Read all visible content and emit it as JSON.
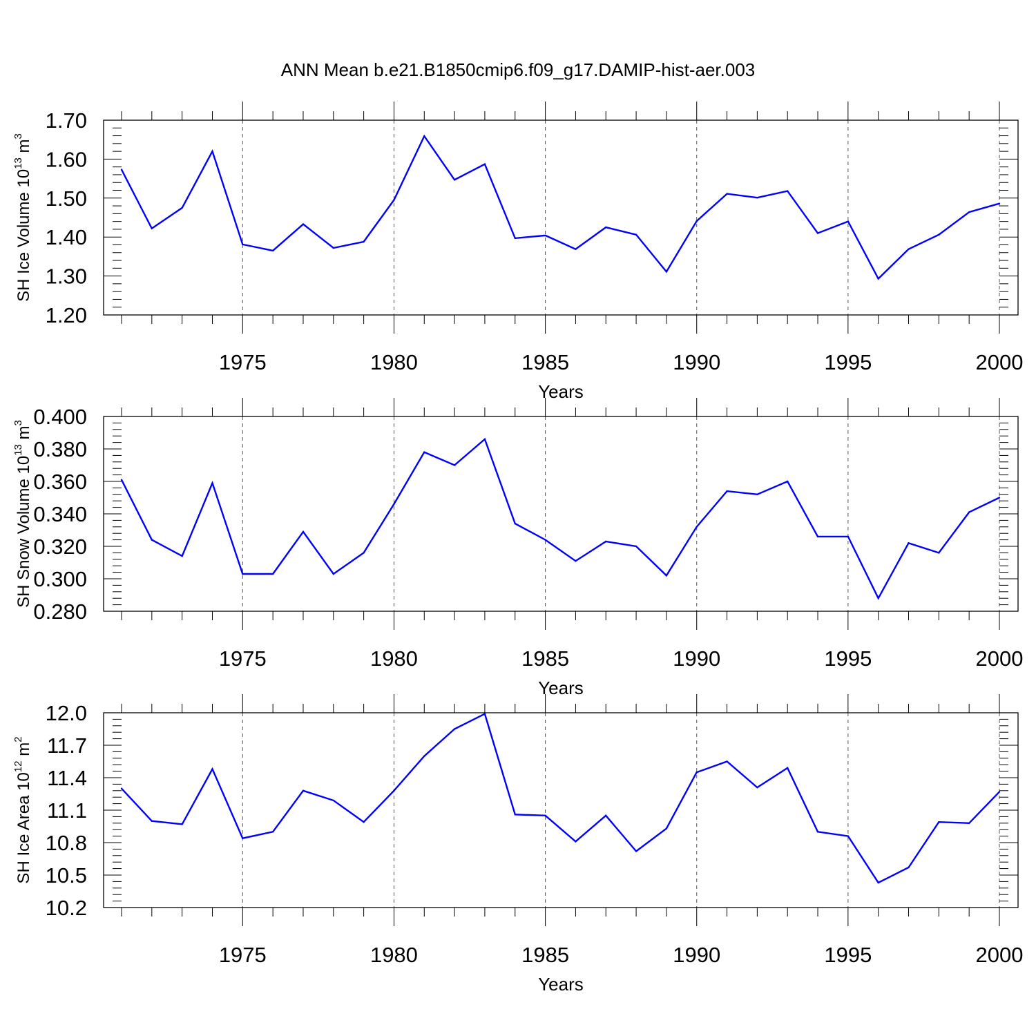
{
  "title": "ANN Mean b.e21.B1850cmip6.f09_g17.DAMIP-hist-aer.003",
  "colors": {
    "line": "#0000ff",
    "axis": "#000000",
    "refline": "#555555"
  },
  "chart_data": [
    {
      "type": "line",
      "ylabel": {
        "base": "SH Ice Volume 10",
        "exp": "13",
        "unit": " m",
        "unit_exp": "3"
      },
      "xlabel": "Years",
      "xlim": [
        1971,
        2000
      ],
      "ylim": [
        1.2,
        1.7
      ],
      "yticks": [
        "1.20",
        "1.30",
        "1.40",
        "1.50",
        "1.60",
        "1.70"
      ],
      "xticks": [
        "1975",
        "1980",
        "1985",
        "1990",
        "1995",
        "2000"
      ],
      "x": [
        1971,
        1972,
        1973,
        1974,
        1975,
        1976,
        1977,
        1978,
        1979,
        1980,
        1981,
        1982,
        1983,
        1984,
        1985,
        1986,
        1987,
        1988,
        1989,
        1990,
        1991,
        1992,
        1993,
        1994,
        1995,
        1996,
        1997,
        1998,
        1999,
        2000
      ],
      "values": [
        1.573,
        1.422,
        1.475,
        1.62,
        1.381,
        1.365,
        1.433,
        1.372,
        1.388,
        1.495,
        1.659,
        1.547,
        1.587,
        1.397,
        1.404,
        1.369,
        1.425,
        1.406,
        1.311,
        1.441,
        1.511,
        1.501,
        1.518,
        1.41,
        1.44,
        1.293,
        1.369,
        1.406,
        1.464,
        1.486
      ]
    },
    {
      "type": "line",
      "ylabel": {
        "base": "SH Snow Volume 10",
        "exp": "13",
        "unit": " m",
        "unit_exp": "3"
      },
      "xlabel": "Years",
      "xlim": [
        1971,
        2000
      ],
      "ylim": [
        0.28,
        0.4
      ],
      "yticks": [
        "0.280",
        "0.300",
        "0.320",
        "0.340",
        "0.360",
        "0.380",
        "0.400"
      ],
      "xticks": [
        "1975",
        "1980",
        "1985",
        "1990",
        "1995",
        "2000"
      ],
      "x": [
        1971,
        1972,
        1973,
        1974,
        1975,
        1976,
        1977,
        1978,
        1979,
        1980,
        1981,
        1982,
        1983,
        1984,
        1985,
        1986,
        1987,
        1988,
        1989,
        1990,
        1991,
        1992,
        1993,
        1994,
        1995,
        1996,
        1997,
        1998,
        1999,
        2000
      ],
      "values": [
        0.361,
        0.324,
        0.314,
        0.359,
        0.303,
        0.303,
        0.329,
        0.303,
        0.316,
        0.346,
        0.378,
        0.37,
        0.386,
        0.334,
        0.324,
        0.311,
        0.323,
        0.32,
        0.302,
        0.332,
        0.354,
        0.352,
        0.36,
        0.326,
        0.326,
        0.288,
        0.322,
        0.316,
        0.341,
        0.35
      ]
    },
    {
      "type": "line",
      "ylabel": {
        "base": "SH Ice Area 10",
        "exp": "12",
        "unit": " m",
        "unit_exp": "2"
      },
      "xlabel": "Years",
      "xlim": [
        1971,
        2000
      ],
      "ylim": [
        10.2,
        12.0
      ],
      "yticks": [
        "10.2",
        "10.5",
        "10.8",
        "11.1",
        "11.4",
        "11.7",
        "12.0"
      ],
      "xticks": [
        "1975",
        "1980",
        "1985",
        "1990",
        "1995",
        "2000"
      ],
      "x": [
        1971,
        1972,
        1973,
        1974,
        1975,
        1976,
        1977,
        1978,
        1979,
        1980,
        1981,
        1982,
        1983,
        1984,
        1985,
        1986,
        1987,
        1988,
        1989,
        1990,
        1991,
        1992,
        1993,
        1994,
        1995,
        1996,
        1997,
        1998,
        1999,
        2000
      ],
      "values": [
        11.3,
        11.0,
        10.97,
        11.48,
        10.84,
        10.9,
        11.28,
        11.19,
        10.99,
        11.28,
        11.6,
        11.85,
        11.99,
        11.06,
        11.05,
        10.81,
        11.05,
        10.72,
        10.93,
        11.45,
        11.55,
        11.31,
        11.49,
        10.9,
        10.86,
        10.43,
        10.57,
        10.99,
        10.98,
        11.27
      ]
    }
  ]
}
